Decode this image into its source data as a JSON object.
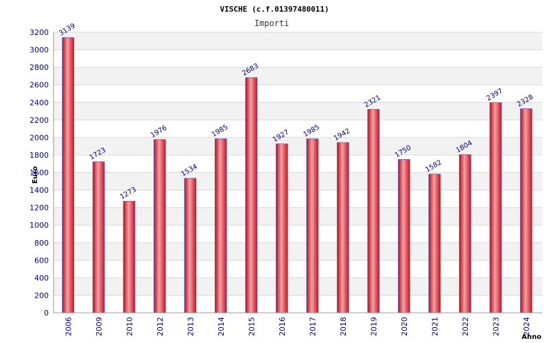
{
  "chart_data": {
    "type": "bar",
    "title": "VISCHE (c.f.01397480011)",
    "subtitle": "Importi",
    "xlabel": "Anno",
    "ylabel": "Euro",
    "categories": [
      "2006",
      "2009",
      "2010",
      "2012",
      "2013",
      "2014",
      "2015",
      "2016",
      "2017",
      "2018",
      "2019",
      "2020",
      "2021",
      "2022",
      "2023",
      "2024"
    ],
    "values": [
      3139,
      1723,
      1273,
      1976,
      1534,
      1985,
      2683,
      1927,
      1985,
      1942,
      2321,
      1750,
      1582,
      1804,
      2397,
      2328
    ],
    "ylim": [
      0,
      3200
    ],
    "ytick_step": 200,
    "grid": true,
    "legend": "none",
    "colors": {
      "bar_fill": "#e8202a",
      "bar_highlight": "#f4a0a6",
      "bar_edge": "#6060c0",
      "band_alt": "#f2f2f2",
      "grid": "#d8d8d8",
      "tick_text": "#000080"
    }
  }
}
